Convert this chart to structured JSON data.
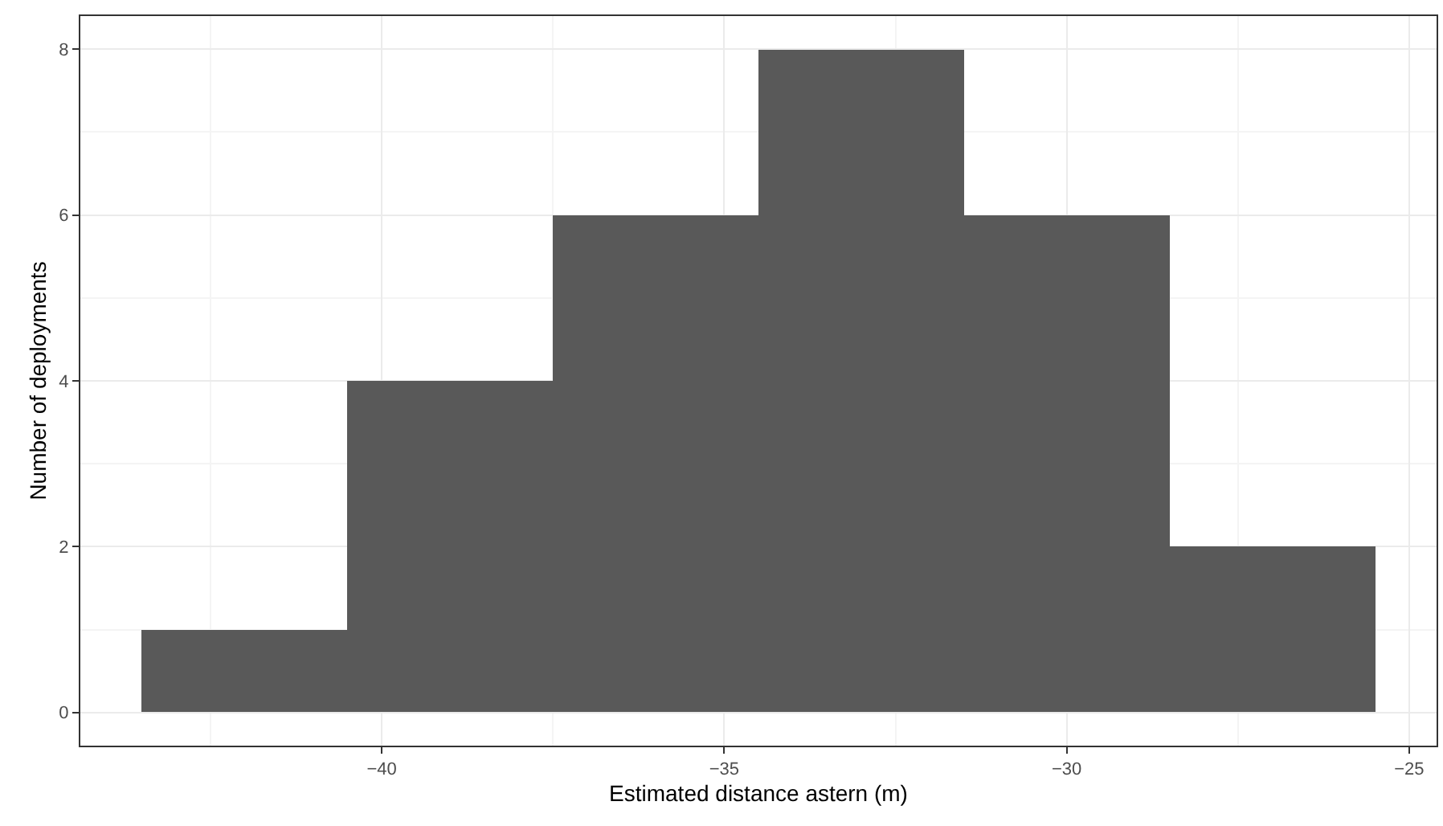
{
  "chart_data": {
    "type": "histogram",
    "xlabel": "Estimated distance astern (m)",
    "ylabel": "Number of deployments",
    "bins": [
      -43.5,
      -40.5,
      -37.5,
      -34.5,
      -31.5,
      -28.5,
      -25.5
    ],
    "values": [
      1,
      4,
      6,
      8,
      6,
      2
    ],
    "color": "#595959",
    "xlim": [
      -44.4,
      -24.6
    ],
    "xticks": [
      {
        "value": -40,
        "label": "−40"
      },
      {
        "value": -35,
        "label": "−35"
      },
      {
        "value": -30,
        "label": "−30"
      },
      {
        "value": -25,
        "label": "−25"
      }
    ],
    "ylim": [
      -0.4,
      8.4
    ],
    "yticks": [
      0,
      2,
      4,
      6,
      8
    ],
    "grid": true
  }
}
